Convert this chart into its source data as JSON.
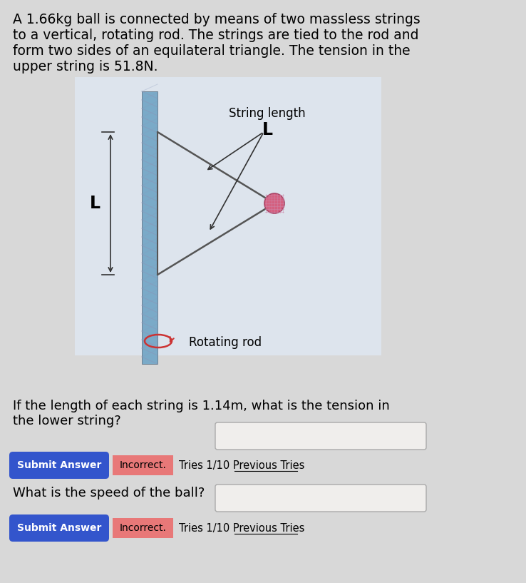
{
  "background_color": "#d8d8d8",
  "diagram_bg_color": "#dde4ed",
  "text_problem": "A 1.66kg ball is connected by means of two massless strings\nto a vertical, rotating rod. The strings are tied to the rod and\nform two sides of an equilateral triangle. The tension in the\nupper string is 51.8N.",
  "text_question1": "If the length of each string is 1.14m, what is the tension in\nthe lower string?",
  "text_question2": "What is the speed of the ball?",
  "label_string_length": "String length",
  "label_L_string": "L",
  "label_L_side": "L",
  "label_rotating_rod": "Rotating rod",
  "rod_color_main": "#7aaac8",
  "rod_stripe_color": "#8899aa",
  "string_color": "#555555",
  "ball_color": "#d46080",
  "ball_hatch_color": "#cc88aa",
  "arrow_color": "#333333",
  "submit_btn_color": "#3355cc",
  "submit_btn_text": "Submit Answer",
  "incorrect_bg_color": "#e87878",
  "incorrect_text": "Incorrect.",
  "tries_text": "Tries 1/10 Previous Tries",
  "input_box_color": "#f0eeec"
}
